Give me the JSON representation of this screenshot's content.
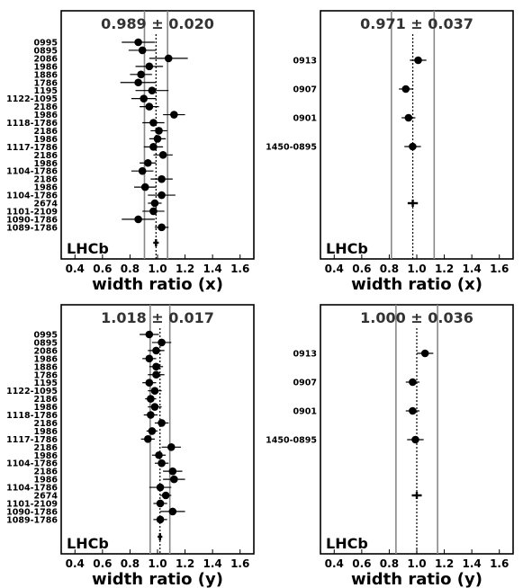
{
  "chart_data": [
    {
      "type": "scatter",
      "summary": "0.989 ± 0.020",
      "xlabel": "width ratio (x)",
      "xlim": [
        0.3,
        1.7
      ],
      "xticks": [
        "0.4",
        "0.6",
        "0.8",
        "1.0",
        "1.2",
        "1.4",
        "1.6"
      ],
      "watermark": "LHCb",
      "average": {
        "value": 0.989,
        "error": 0.02
      },
      "points": [
        {
          "label": "0995",
          "value": 0.86,
          "error": 0.12
        },
        {
          "label": "0895",
          "value": 0.89,
          "error": 0.1
        },
        {
          "label": "2086",
          "value": 1.08,
          "error": 0.14
        },
        {
          "label": "1986",
          "value": 0.94,
          "error": 0.1
        },
        {
          "label": "1886",
          "value": 0.88,
          "error": 0.08
        },
        {
          "label": "1786",
          "value": 0.86,
          "error": 0.13
        },
        {
          "label": "1195",
          "value": 0.96,
          "error": 0.12
        },
        {
          "label": "1122-1095",
          "value": 0.9,
          "error": 0.09
        },
        {
          "label": "2186",
          "value": 0.94,
          "error": 0.07
        },
        {
          "label": "1986",
          "value": 1.12,
          "error": 0.08
        },
        {
          "label": "1118-1786",
          "value": 0.97,
          "error": 0.08
        },
        {
          "label": "2186",
          "value": 1.01,
          "error": 0.06
        },
        {
          "label": "1986",
          "value": 1.0,
          "error": 0.06
        },
        {
          "label": "1117-1786",
          "value": 0.97,
          "error": 0.07
        },
        {
          "label": "2186",
          "value": 1.04,
          "error": 0.07
        },
        {
          "label": "1986",
          "value": 0.93,
          "error": 0.06
        },
        {
          "label": "1104-1786",
          "value": 0.89,
          "error": 0.08
        },
        {
          "label": "2186",
          "value": 1.03,
          "error": 0.08
        },
        {
          "label": "1986",
          "value": 0.91,
          "error": 0.08
        },
        {
          "label": "1104-1786",
          "value": 1.03,
          "error": 0.1
        },
        {
          "label": "2674",
          "value": 0.98,
          "error": 0.05
        },
        {
          "label": "1101-2109",
          "value": 0.97,
          "error": 0.08
        },
        {
          "label": "1090-1786",
          "value": 0.86,
          "error": 0.12
        },
        {
          "label": "1089-1786",
          "value": 1.03,
          "error": 0.05
        }
      ]
    },
    {
      "type": "scatter",
      "summary": "0.971 ± 0.037",
      "xlabel": "width ratio (x)",
      "xlim": [
        0.3,
        1.7
      ],
      "xticks": [
        "0.4",
        "0.6",
        "0.8",
        "1.0",
        "1.2",
        "1.4",
        "1.6"
      ],
      "watermark": "LHCb",
      "average": {
        "value": 0.971,
        "error": 0.037
      },
      "points": [
        {
          "label": "0913",
          "value": 1.01,
          "error": 0.06
        },
        {
          "label": "0907",
          "value": 0.92,
          "error": 0.05
        },
        {
          "label": "0901",
          "value": 0.94,
          "error": 0.05
        },
        {
          "label": "1450-0895",
          "value": 0.97,
          "error": 0.06
        }
      ]
    },
    {
      "type": "scatter",
      "summary": "1.018 ± 0.017",
      "xlabel": "width ratio (y)",
      "xlim": [
        0.3,
        1.7
      ],
      "xticks": [
        "0.4",
        "0.6",
        "0.8",
        "1.0",
        "1.2",
        "1.4",
        "1.6"
      ],
      "watermark": "LHCb",
      "average": {
        "value": 1.018,
        "error": 0.017
      },
      "points": [
        {
          "label": "0995",
          "value": 0.94,
          "error": 0.07
        },
        {
          "label": "0895",
          "value": 1.03,
          "error": 0.07
        },
        {
          "label": "2086",
          "value": 0.99,
          "error": 0.06
        },
        {
          "label": "1986",
          "value": 0.94,
          "error": 0.05
        },
        {
          "label": "1886",
          "value": 0.99,
          "error": 0.05
        },
        {
          "label": "1786",
          "value": 0.99,
          "error": 0.06
        },
        {
          "label": "1195",
          "value": 0.94,
          "error": 0.05
        },
        {
          "label": "1122-1095",
          "value": 0.98,
          "error": 0.05
        },
        {
          "label": "2186",
          "value": 0.95,
          "error": 0.04
        },
        {
          "label": "1986",
          "value": 0.98,
          "error": 0.05
        },
        {
          "label": "1118-1786",
          "value": 0.95,
          "error": 0.05
        },
        {
          "label": "2186",
          "value": 1.03,
          "error": 0.05
        },
        {
          "label": "1986",
          "value": 0.96,
          "error": 0.04
        },
        {
          "label": "1117-1786",
          "value": 0.93,
          "error": 0.05
        },
        {
          "label": "2186",
          "value": 1.1,
          "error": 0.07
        },
        {
          "label": "1986",
          "value": 1.01,
          "error": 0.05
        },
        {
          "label": "1104-1786",
          "value": 1.03,
          "error": 0.05
        },
        {
          "label": "2186",
          "value": 1.11,
          "error": 0.07
        },
        {
          "label": "1986",
          "value": 1.12,
          "error": 0.08
        },
        {
          "label": "1104-1786",
          "value": 1.02,
          "error": 0.08
        },
        {
          "label": "2674",
          "value": 1.06,
          "error": 0.04
        },
        {
          "label": "1101-2109",
          "value": 1.02,
          "error": 0.05
        },
        {
          "label": "1090-1786",
          "value": 1.11,
          "error": 0.09
        },
        {
          "label": "1089-1786",
          "value": 1.02,
          "error": 0.05
        }
      ]
    },
    {
      "type": "scatter",
      "summary": "1.000 ± 0.036",
      "xlabel": "width ratio (y)",
      "xlim": [
        0.3,
        1.7
      ],
      "xticks": [
        "0.4",
        "0.6",
        "0.8",
        "1.0",
        "1.2",
        "1.4",
        "1.6"
      ],
      "watermark": "LHCb",
      "average": {
        "value": 1.0,
        "error": 0.036
      },
      "points": [
        {
          "label": "0913",
          "value": 1.06,
          "error": 0.06
        },
        {
          "label": "0907",
          "value": 0.97,
          "error": 0.05
        },
        {
          "label": "0901",
          "value": 0.97,
          "error": 0.05
        },
        {
          "label": "1450-0895",
          "value": 0.99,
          "error": 0.06
        }
      ]
    }
  ]
}
